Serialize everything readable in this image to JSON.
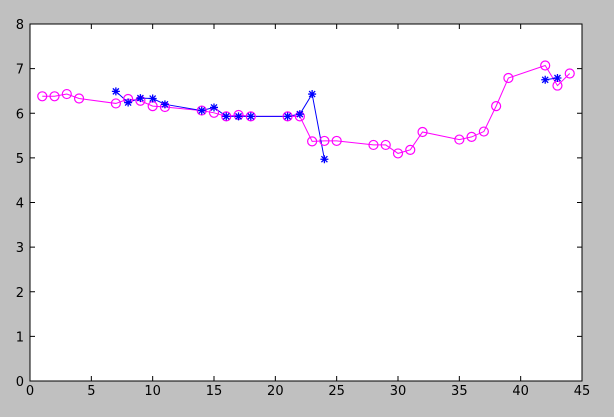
{
  "chart_data": {
    "type": "line",
    "title": "",
    "xlabel": "",
    "ylabel": "",
    "xlim": [
      0,
      45
    ],
    "ylim": [
      0,
      8
    ],
    "xticks": [
      0,
      5,
      10,
      15,
      20,
      25,
      30,
      35,
      40,
      45
    ],
    "yticks": [
      0,
      1,
      2,
      3,
      4,
      5,
      6,
      7,
      8
    ],
    "grid": false,
    "legend": "none",
    "series": [
      {
        "color": "#ff00ff",
        "marker": "circle",
        "segments": [
          [
            [
              1,
              6.38
            ],
            [
              2,
              6.38
            ],
            [
              3,
              6.43
            ],
            [
              4,
              6.33
            ],
            [
              7,
              6.22
            ],
            [
              8,
              6.32
            ],
            [
              9,
              6.28
            ],
            [
              10,
              6.16
            ],
            [
              11,
              6.14
            ],
            [
              14,
              6.06
            ],
            [
              15,
              6.01
            ],
            [
              16,
              5.93
            ],
            [
              17,
              5.96
            ],
            [
              18,
              5.93
            ],
            [
              21,
              5.93
            ],
            [
              22,
              5.93
            ],
            [
              23,
              5.37
            ],
            [
              24,
              5.38
            ],
            [
              25,
              5.38
            ],
            [
              28,
              5.29
            ],
            [
              29,
              5.29
            ],
            [
              30,
              5.1
            ],
            [
              31,
              5.18
            ],
            [
              32,
              5.58
            ],
            [
              35,
              5.41
            ],
            [
              36,
              5.47
            ],
            [
              37,
              5.59
            ],
            [
              38,
              6.16
            ],
            [
              39,
              6.79
            ],
            [
              42,
              7.07
            ],
            [
              43,
              6.62
            ],
            [
              44,
              6.89
            ]
          ]
        ]
      },
      {
        "color": "#0000ff",
        "marker": "star",
        "segments": [
          [
            [
              7,
              6.49
            ],
            [
              8,
              6.24
            ],
            [
              9,
              6.34
            ],
            [
              10,
              6.33
            ],
            [
              11,
              6.2
            ],
            [
              14,
              6.06
            ],
            [
              15,
              6.13
            ],
            [
              16,
              5.93
            ],
            [
              17,
              5.93
            ],
            [
              18,
              5.93
            ],
            [
              21,
              5.93
            ],
            [
              22,
              5.98
            ],
            [
              23,
              6.43
            ],
            [
              24,
              4.97
            ]
          ],
          [
            [
              42,
              6.75
            ],
            [
              43,
              6.79
            ]
          ]
        ]
      }
    ]
  }
}
